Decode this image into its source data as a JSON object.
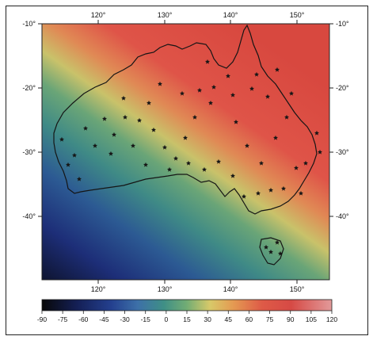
{
  "map": {
    "region": "Australia",
    "lon_ticks": [
      "120°",
      "130°",
      "140°",
      "150°"
    ],
    "lat_ticks_left": [
      "-10°",
      "-20°",
      "-30°",
      "-40°"
    ],
    "lat_ticks_right": [
      "-10°",
      "-20°",
      "-30°",
      "-40°"
    ],
    "lon_range": [
      112,
      155
    ],
    "lat_range": [
      -45,
      -10
    ],
    "field_gradient": "increasing from southwest (negative) to northeast (positive)",
    "station_symbol": "star",
    "colors": {
      "very_negative": "#111111",
      "negative": "#2a3f8f",
      "neutral": "#4f9a7a",
      "near_zero": "#c9c26a",
      "positive": "#e0564a",
      "very_positive": "#d23a3a"
    }
  },
  "colorbar": {
    "labels": [
      "-90",
      "-75",
      "-60",
      "-45",
      "-30",
      "-15",
      "0",
      "15",
      "30",
      "45",
      "60",
      "75",
      "90",
      "105",
      "120"
    ],
    "min": -90,
    "max": 120
  }
}
